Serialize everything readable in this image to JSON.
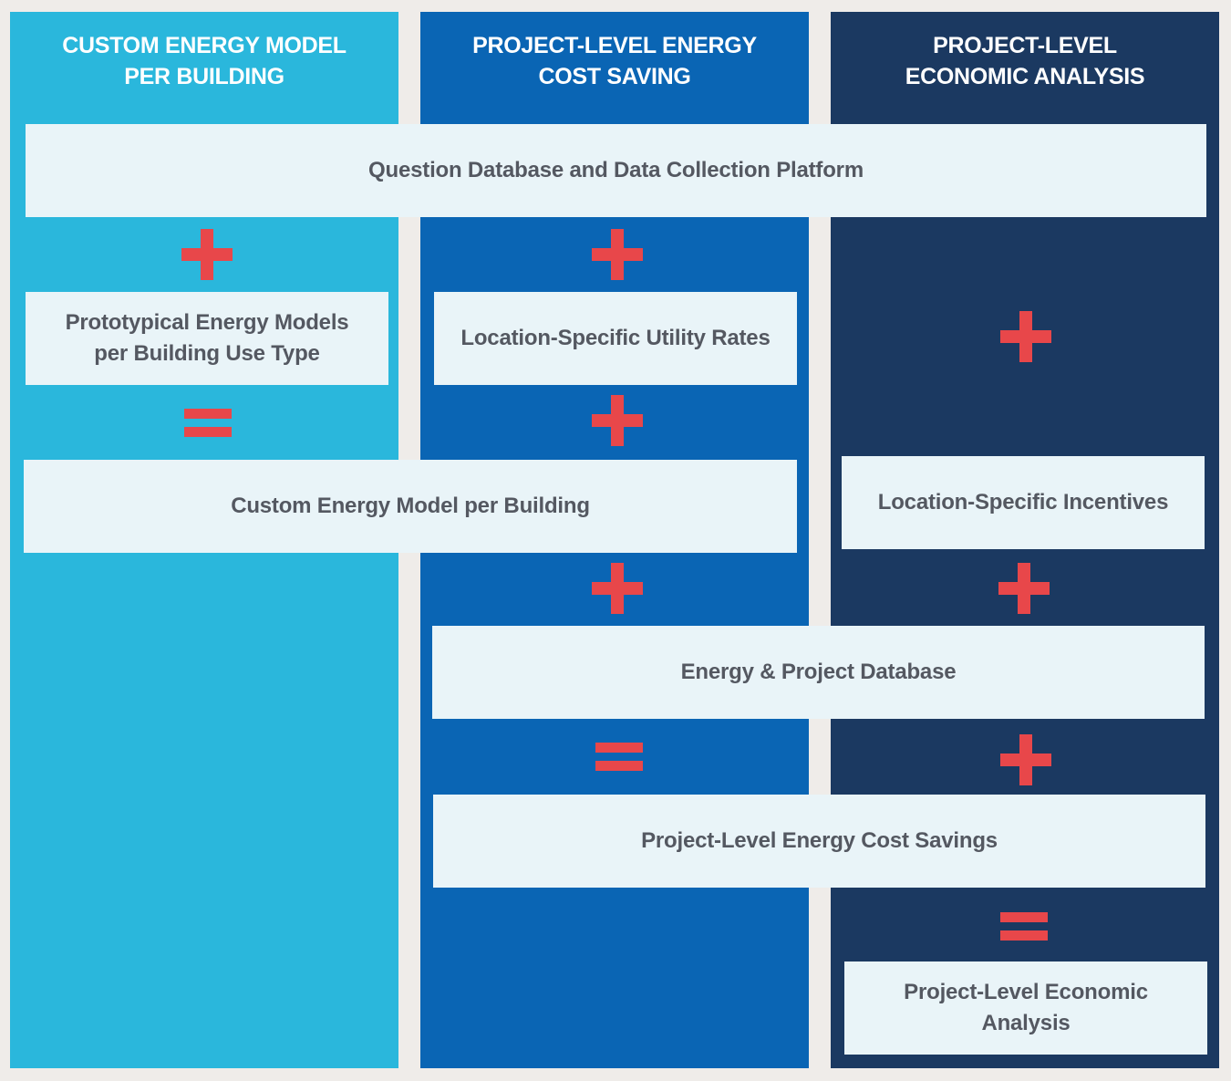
{
  "colors": {
    "background": "#efece9",
    "column_1": "#2ab7dc",
    "column_2": "#0a65b4",
    "column_3": "#1b3961",
    "box_fill": "#e9f4f8",
    "box_text": "#545861",
    "operator": "#e8474a",
    "header_text": "#ffffff"
  },
  "columns": [
    {
      "title": "CUSTOM ENERGY MODEL\nPER BUILDING"
    },
    {
      "title": "PROJECT-LEVEL ENERGY\nCOST SAVING"
    },
    {
      "title": "PROJECT-LEVEL\nECONOMIC ANALYSIS"
    }
  ],
  "boxes": {
    "question_database": "Question Database and Data Collection Platform",
    "prototypical_models": "Prototypical Energy Models\nper Building Use Type",
    "utility_rates": "Location-Specific Utility Rates",
    "custom_model": "Custom Energy Model per Building",
    "incentives": "Location-Specific Incentives",
    "energy_project_db": "Energy & Project Database",
    "cost_savings": "Project-Level Energy Cost Savings",
    "economic_analysis": "Project-Level Economic\nAnalysis"
  },
  "operators": {
    "plus_icon": "plus-icon",
    "equals_icon": "equals-icon"
  }
}
